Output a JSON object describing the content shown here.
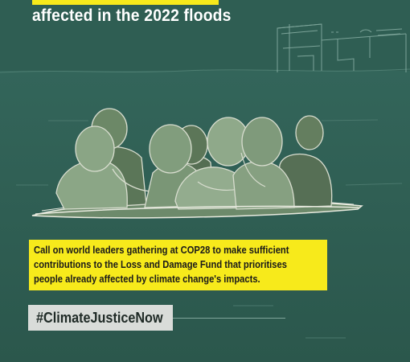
{
  "headline": {
    "line2": "affected in the 2022 floods"
  },
  "callout": {
    "lines": [
      "Call on world leaders gathering at COP28 to make sufficient",
      "contributions to the Loss and Damage Fund that prioritises",
      "people already affected by climate change's impacts."
    ]
  },
  "hashtag": "#ClimateJusticeNow",
  "colors": {
    "background": "#2f5d52",
    "highlight": "#f7ea1b",
    "figures": "#7d9a78",
    "hashtag_box": "#d9dcd9"
  }
}
